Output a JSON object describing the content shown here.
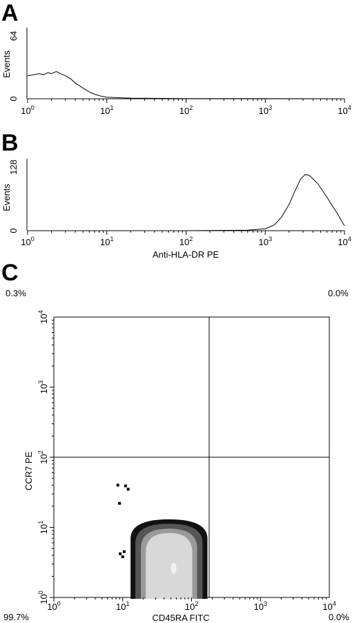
{
  "panels": {
    "A": "A",
    "B": "B",
    "C": "C"
  },
  "chart_data": [
    {
      "type": "line",
      "panel": "A",
      "title": "",
      "xlabel": "",
      "ylabel": "Events",
      "xscale": "log",
      "xlim": [
        1,
        10000
      ],
      "ylim": [
        0,
        64
      ],
      "ytick_labels": [
        "0",
        "64"
      ],
      "xtick_labels": [
        {
          "base": "10",
          "exp": "0"
        },
        {
          "base": "10",
          "exp": "1"
        },
        {
          "base": "10",
          "exp": "2"
        },
        {
          "base": "10",
          "exp": "3"
        },
        {
          "base": "10",
          "exp": "4"
        }
      ],
      "series": [
        {
          "x": [
            1,
            1.2,
            1.4,
            1.6,
            1.8,
            2.0,
            2.3,
            2.6,
            3.0,
            3.5,
            4.0,
            4.6,
            5.3,
            6.2,
            7.2,
            8.5,
            10,
            14,
            20,
            40,
            100,
            1000,
            10000
          ],
          "y": [
            22,
            23,
            24,
            23,
            25,
            24,
            26,
            24,
            22,
            19,
            15,
            12,
            9,
            6,
            4,
            2.5,
            1.5,
            1,
            0.6,
            0.4,
            0.2,
            0.1,
            0
          ]
        }
      ],
      "grid": false
    },
    {
      "type": "line",
      "panel": "B",
      "title": "",
      "xlabel": "Anti-HLA-DR PE",
      "ylabel": "Events",
      "xscale": "log",
      "xlim": [
        1,
        10000
      ],
      "ylim": [
        0,
        128
      ],
      "ytick_labels": [
        "0",
        "128"
      ],
      "xtick_labels": [
        {
          "base": "10",
          "exp": "0"
        },
        {
          "base": "10",
          "exp": "1"
        },
        {
          "base": "10",
          "exp": "2"
        },
        {
          "base": "10",
          "exp": "3"
        },
        {
          "base": "10",
          "exp": "4"
        }
      ],
      "series": [
        {
          "x": [
            1,
            100,
            600,
            1000,
            1300,
            1600,
            2000,
            2400,
            2800,
            3200,
            3600,
            4000,
            4600,
            5200,
            6000,
            7000,
            8200,
            9200,
            10000
          ],
          "y": [
            0,
            0,
            1,
            4,
            12,
            28,
            55,
            85,
            108,
            117,
            115,
            108,
            98,
            85,
            70,
            52,
            35,
            20,
            10
          ]
        }
      ],
      "grid": false
    },
    {
      "type": "heatmap",
      "panel": "C",
      "title": "",
      "xlabel": "CD45RA FITC",
      "ylabel": "CCR7 PE",
      "xscale": "log",
      "yscale": "log",
      "xlim": [
        1,
        10000
      ],
      "ylim": [
        1,
        10000
      ],
      "tick_labels": [
        {
          "base": "10",
          "exp": "0"
        },
        {
          "base": "10",
          "exp": "1"
        },
        {
          "base": "10",
          "exp": "2"
        },
        {
          "base": "10",
          "exp": "3"
        },
        {
          "base": "10",
          "exp": "4"
        }
      ],
      "quadrant_gates": {
        "x": 180,
        "y": 100
      },
      "quadrant_percentages": {
        "upper_left": "0.3%",
        "upper_right": "0.0%",
        "lower_left": "99.7%",
        "lower_right": "0.0%"
      },
      "population": {
        "x_range": [
          13,
          170
        ],
        "y_range": [
          1,
          13
        ],
        "center": [
          55,
          3
        ],
        "colors": [
          "#111111",
          "#555555",
          "#9a9a9a",
          "#d8d8d8"
        ]
      },
      "outliers": [
        {
          "x": 8.5,
          "y": 40
        },
        {
          "x": 11,
          "y": 39
        },
        {
          "x": 12,
          "y": 35
        },
        {
          "x": 9,
          "y": 22
        },
        {
          "x": 9.2,
          "y": 4.2
        },
        {
          "x": 10.5,
          "y": 4.5
        },
        {
          "x": 10,
          "y": 3.8
        }
      ],
      "grid": false
    }
  ]
}
